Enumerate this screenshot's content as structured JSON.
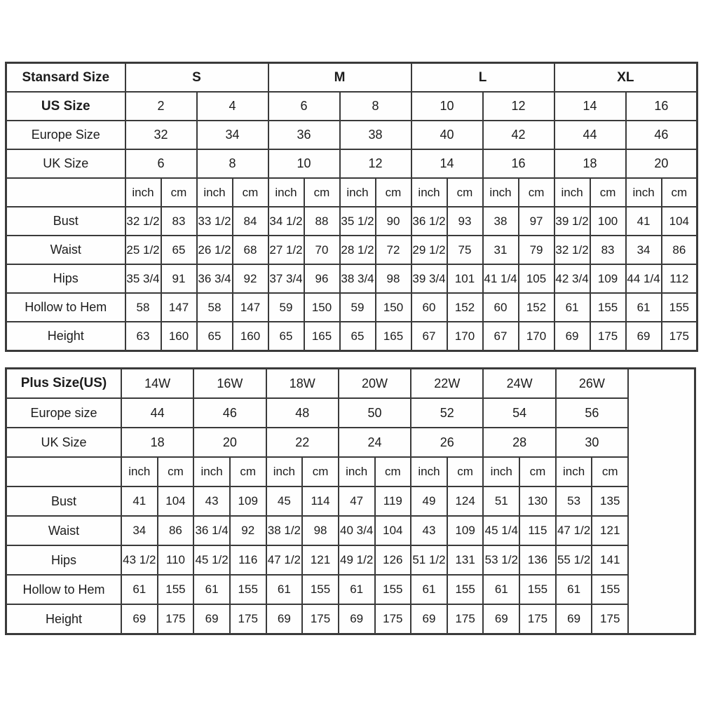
{
  "chart_data": [
    {
      "type": "table",
      "title": "Stansard Size",
      "groups": [
        "S",
        "M",
        "L",
        "XL"
      ],
      "us_size_label": "US Size",
      "us_sizes": [
        "2",
        "4",
        "6",
        "8",
        "10",
        "12",
        "14",
        "16"
      ],
      "europe_size_label": "Europe Size",
      "europe_sizes": [
        "32",
        "34",
        "36",
        "38",
        "40",
        "42",
        "44",
        "46"
      ],
      "uk_size_label": "UK Size",
      "uk_sizes": [
        "6",
        "8",
        "10",
        "12",
        "14",
        "16",
        "18",
        "20"
      ],
      "unit_cells": [
        "inch",
        "cm",
        "inch",
        "cm",
        "inch",
        "cm",
        "inch",
        "cm",
        "inch",
        "cm",
        "inch",
        "cm",
        "inch",
        "cm",
        "inch",
        "cm"
      ],
      "meas": [
        {
          "label": "Bust",
          "vals": [
            "32 1/2",
            "83",
            "33 1/2",
            "84",
            "34 1/2",
            "88",
            "35 1/2",
            "90",
            "36 1/2",
            "93",
            "38",
            "97",
            "39 1/2",
            "100",
            "41",
            "104"
          ]
        },
        {
          "label": "Waist",
          "vals": [
            "25 1/2",
            "65",
            "26 1/2",
            "68",
            "27 1/2",
            "70",
            "28 1/2",
            "72",
            "29 1/2",
            "75",
            "31",
            "79",
            "32 1/2",
            "83",
            "34",
            "86"
          ]
        },
        {
          "label": "Hips",
          "vals": [
            "35 3/4",
            "91",
            "36 3/4",
            "92",
            "37 3/4",
            "96",
            "38 3/4",
            "98",
            "39 3/4",
            "101",
            "41 1/4",
            "105",
            "42 3/4",
            "109",
            "44 1/4",
            "112"
          ]
        },
        {
          "label": "Hollow to Hem",
          "vals": [
            "58",
            "147",
            "58",
            "147",
            "59",
            "150",
            "59",
            "150",
            "60",
            "152",
            "60",
            "152",
            "61",
            "155",
            "61",
            "155"
          ]
        },
        {
          "label": "Height",
          "vals": [
            "63",
            "160",
            "65",
            "160",
            "65",
            "165",
            "65",
            "165",
            "67",
            "170",
            "67",
            "170",
            "69",
            "175",
            "69",
            "175"
          ]
        }
      ]
    },
    {
      "type": "table",
      "title": "Plus Size(US)",
      "plus_sizes": [
        "14W",
        "16W",
        "18W",
        "20W",
        "22W",
        "24W",
        "26W"
      ],
      "europe_size_label": "Europe size",
      "europe_sizes": [
        "44",
        "46",
        "48",
        "50",
        "52",
        "54",
        "56"
      ],
      "uk_size_label": "UK Size",
      "uk_sizes": [
        "18",
        "20",
        "22",
        "24",
        "26",
        "28",
        "30"
      ],
      "unit_cells": [
        "inch",
        "cm",
        "inch",
        "cm",
        "inch",
        "cm",
        "inch",
        "cm",
        "inch",
        "cm",
        "inch",
        "cm",
        "inch",
        "cm"
      ],
      "meas": [
        {
          "label": "Bust",
          "vals": [
            "41",
            "104",
            "43",
            "109",
            "45",
            "114",
            "47",
            "119",
            "49",
            "124",
            "51",
            "130",
            "53",
            "135"
          ]
        },
        {
          "label": "Waist",
          "vals": [
            "34",
            "86",
            "36 1/4",
            "92",
            "38 1/2",
            "98",
            "40 3/4",
            "104",
            "43",
            "109",
            "45 1/4",
            "115",
            "47 1/2",
            "121"
          ]
        },
        {
          "label": "Hips",
          "vals": [
            "43 1/2",
            "110",
            "45 1/2",
            "116",
            "47 1/2",
            "121",
            "49 1/2",
            "126",
            "51 1/2",
            "131",
            "53 1/2",
            "136",
            "55 1/2",
            "141"
          ]
        },
        {
          "label": "Hollow to Hem",
          "vals": [
            "61",
            "155",
            "61",
            "155",
            "61",
            "155",
            "61",
            "155",
            "61",
            "155",
            "61",
            "155",
            "61",
            "155"
          ]
        },
        {
          "label": "Height",
          "vals": [
            "69",
            "175",
            "69",
            "175",
            "69",
            "175",
            "69",
            "175",
            "69",
            "175",
            "69",
            "175",
            "69",
            "175"
          ]
        }
      ]
    }
  ],
  "colors": {
    "border": "#3a3a3a",
    "text": "#1c1c1c",
    "background": "#ffffff"
  }
}
